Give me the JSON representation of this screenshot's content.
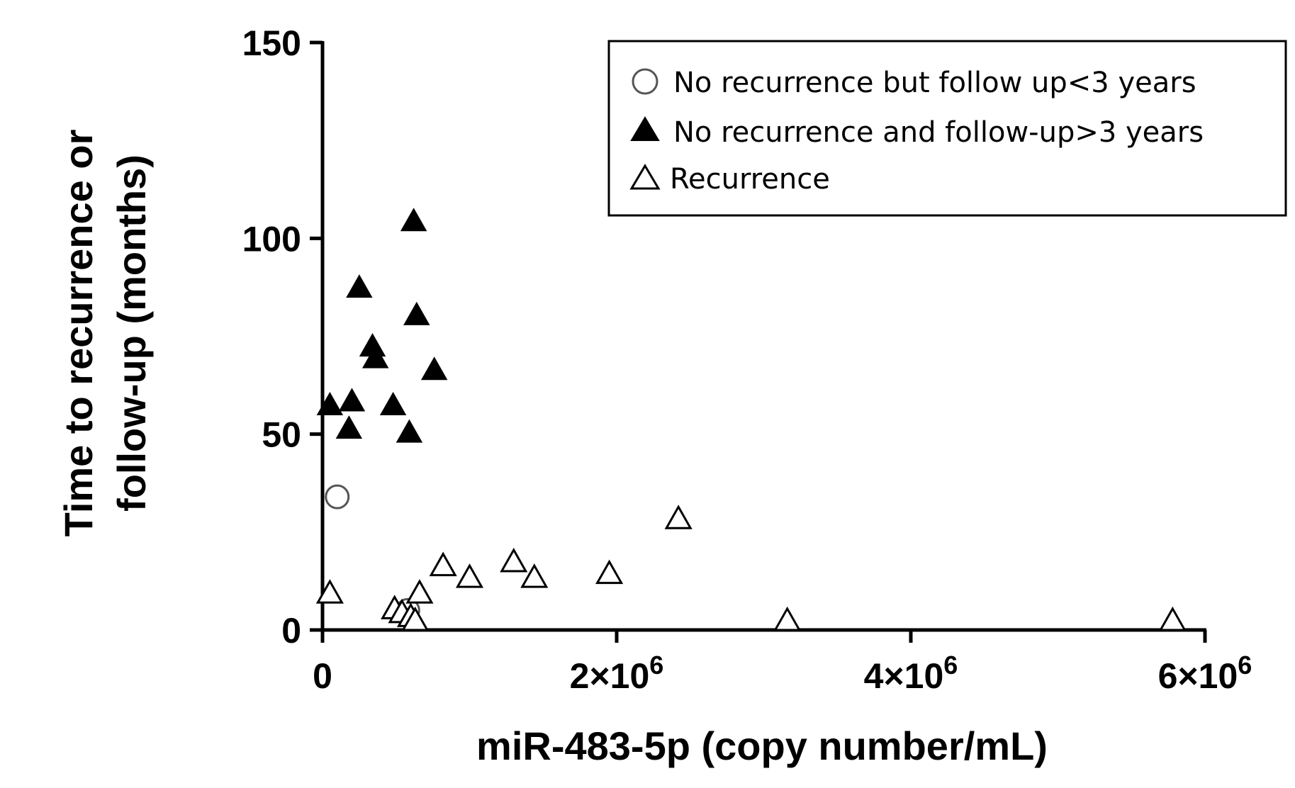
{
  "chart_data": {
    "type": "scatter",
    "xlabel": "miR-483-5p (copy number/mL)",
    "ylabel_lines": [
      "Time to recurrence or",
      "follow-up (months)"
    ],
    "xlim": [
      0,
      6000000
    ],
    "ylim": [
      0,
      150
    ],
    "x_ticks": [
      {
        "value": 0,
        "mantissa": "0",
        "exponent": ""
      },
      {
        "value": 2000000,
        "mantissa": "2×10",
        "exponent": "6"
      },
      {
        "value": 4000000,
        "mantissa": "4×10",
        "exponent": "6"
      },
      {
        "value": 6000000,
        "mantissa": "6×10",
        "exponent": "6"
      }
    ],
    "y_ticks": [
      {
        "value": 0,
        "label": "0"
      },
      {
        "value": 50,
        "label": "50"
      },
      {
        "value": 100,
        "label": "100"
      },
      {
        "value": 150,
        "label": "150"
      }
    ],
    "legend_position": "top-right",
    "series": [
      {
        "name": "No recurrence but follow up<3 years",
        "marker": "open-circle",
        "points": [
          [
            100000,
            34
          ],
          [
            580000,
            5
          ]
        ]
      },
      {
        "name": "No recurrence and follow-up>3 years",
        "marker": "filled-triangle",
        "points": [
          [
            50000,
            57
          ],
          [
            250000,
            87
          ],
          [
            200000,
            58
          ],
          [
            180000,
            51
          ],
          [
            340000,
            72
          ],
          [
            360000,
            69
          ],
          [
            480000,
            57
          ],
          [
            590000,
            50
          ],
          [
            620000,
            104
          ],
          [
            640000,
            80
          ],
          [
            760000,
            66
          ]
        ]
      },
      {
        "name": "Recurrence",
        "marker": "open-triangle",
        "points": [
          [
            50000,
            9
          ],
          [
            490000,
            5
          ],
          [
            540000,
            4
          ],
          [
            600000,
            3
          ],
          [
            630000,
            2
          ],
          [
            660000,
            9
          ],
          [
            820000,
            16
          ],
          [
            1000000,
            13
          ],
          [
            1300000,
            17
          ],
          [
            1440000,
            13
          ],
          [
            1950000,
            14
          ],
          [
            2420000,
            28
          ],
          [
            3160000,
            2
          ],
          [
            5780000,
            2
          ]
        ]
      }
    ]
  }
}
